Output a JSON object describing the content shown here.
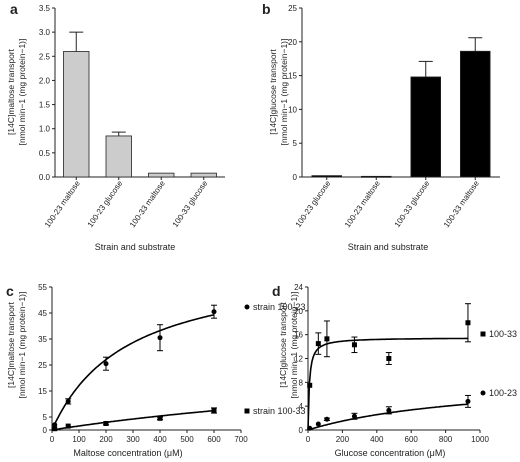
{
  "chart_data": [
    {
      "panel": "a",
      "type": "bar",
      "categories": [
        "100-23 maltose",
        "100-23 glucose",
        "100-33 maltose",
        "100-33 glucose"
      ],
      "values": [
        2.6,
        0.85,
        0.08,
        0.08
      ],
      "errors": [
        0.4,
        0.08,
        0,
        0
      ],
      "bar_color": "#cccccc",
      "ylabel_line1": "[14C]maltose transport",
      "ylabel_line2": "[nmol min−1 (mg protein−1)]",
      "xlabel": "Strain and substrate",
      "ylim": [
        0,
        3.5
      ],
      "yticks": [
        "0.0",
        "0.5",
        "1.0",
        "1.5",
        "2.0",
        "2.5",
        "3.0",
        "3.5"
      ]
    },
    {
      "panel": "b",
      "type": "bar",
      "categories": [
        "100-23 glucose",
        "100-23 maltose",
        "100-33 glucose",
        "100-33 maltose"
      ],
      "values": [
        0.2,
        0.1,
        14.8,
        18.6
      ],
      "errors": [
        0,
        0,
        2.3,
        2.0
      ],
      "bar_color": "#000000",
      "ylabel_line1": "[14C]glucose transport",
      "ylabel_line2": "[nmol min−1 (mg protein−1)]",
      "xlabel": "Strain and substrate",
      "ylim": [
        0,
        25
      ],
      "yticks": [
        "0",
        "5",
        "10",
        "15",
        "20",
        "25"
      ]
    },
    {
      "panel": "c",
      "type": "scatter",
      "xlabel": "Maltose concentration (μM)",
      "ylabel_line1": "[14C]maltose transport",
      "ylabel_line2": "[nmol min−1 (mg protein−1)]",
      "xlim": [
        0,
        700
      ],
      "ylim": [
        0,
        55
      ],
      "xticks": [
        "0",
        "100",
        "200",
        "300",
        "400",
        "500",
        "600",
        "700"
      ],
      "yticks": [
        "0",
        "5",
        "15",
        "25",
        "35",
        "45",
        "55"
      ],
      "series": [
        {
          "name": "strain 100-23",
          "marker": "circle",
          "x": [
            10,
            60,
            200,
            400,
            600
          ],
          "y": [
            2,
            11,
            25.5,
            35.5,
            45.5
          ],
          "err": [
            0,
            1,
            2.5,
            5,
            2.5
          ],
          "vmax": 65,
          "km": 280
        },
        {
          "name": "strain 100-33",
          "marker": "square",
          "x": [
            10,
            60,
            200,
            400,
            600
          ],
          "y": [
            0.5,
            1.5,
            2.5,
            4.5,
            7.5
          ],
          "err": [
            0,
            0,
            0.5,
            0.5,
            1
          ],
          "vmax": 31,
          "km": 1900
        }
      ]
    },
    {
      "panel": "d",
      "type": "scatter",
      "xlabel": "Glucose concentration (μM)",
      "ylabel_line1": "[14C]glucose transport",
      "ylabel_line2": "[nmol min−1 (mg protein−1)]",
      "xlim": [
        0,
        1000
      ],
      "ylim": [
        0,
        24
      ],
      "xticks": [
        "0",
        "200",
        "400",
        "600",
        "800",
        "1000"
      ],
      "yticks": [
        "0",
        "4",
        "8",
        "12",
        "16",
        "20",
        "24"
      ],
      "series": [
        {
          "name": "100-33",
          "marker": "square",
          "x": [
            10,
            60,
            110,
            270,
            470,
            930
          ],
          "y": [
            7.5,
            14.5,
            15.3,
            14.3,
            12,
            18
          ],
          "err": [
            0,
            1.8,
            3,
            1.3,
            1,
            3.2
          ],
          "vmax": 15.5,
          "km": 8
        },
        {
          "name": "100-23",
          "marker": "circle",
          "x": [
            10,
            60,
            110,
            270,
            470,
            930
          ],
          "y": [
            0.3,
            1,
            1.8,
            2.3,
            3.3,
            4.8
          ],
          "err": [
            0,
            0,
            0.2,
            0.5,
            0.6,
            1
          ],
          "vmax": 9,
          "km": 1000
        }
      ]
    }
  ]
}
